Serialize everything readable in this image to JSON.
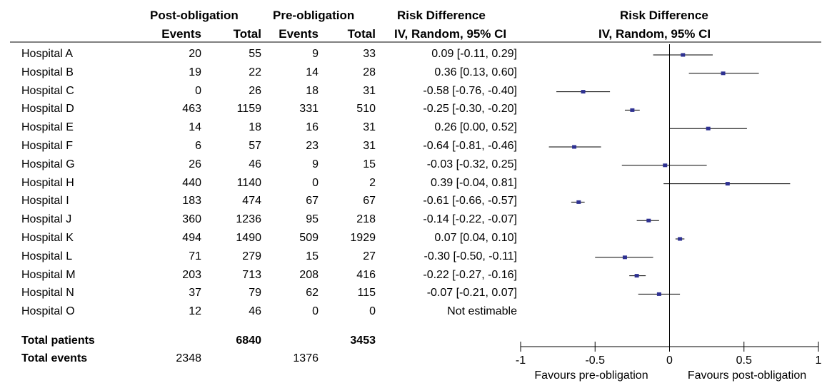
{
  "headers": {
    "post_group": "Post-obligation",
    "pre_group": "Pre-obligation",
    "rd_title": "Risk Difference",
    "rd_method": "IV, Random, 95% CI",
    "events": "Events",
    "total": "Total",
    "plot_title": "Risk Difference",
    "plot_method": "IV, Random, 95% CI"
  },
  "rows": [
    {
      "name": "Hospital A",
      "post_events": "20",
      "post_total": "55",
      "pre_events": "9",
      "pre_total": "33",
      "ci_text": "0.09 [-0.11, 0.29]"
    },
    {
      "name": "Hospital B",
      "post_events": "19",
      "post_total": "22",
      "pre_events": "14",
      "pre_total": "28",
      "ci_text": "0.36 [0.13, 0.60]"
    },
    {
      "name": "Hospital C",
      "post_events": "0",
      "post_total": "26",
      "pre_events": "18",
      "pre_total": "31",
      "ci_text": "-0.58 [-0.76, -0.40]"
    },
    {
      "name": "Hospital D",
      "post_events": "463",
      "post_total": "1159",
      "pre_events": "331",
      "pre_total": "510",
      "ci_text": "-0.25 [-0.30, -0.20]"
    },
    {
      "name": "Hospital E",
      "post_events": "14",
      "post_total": "18",
      "pre_events": "16",
      "pre_total": "31",
      "ci_text": "0.26 [0.00, 0.52]"
    },
    {
      "name": "Hospital F",
      "post_events": "6",
      "post_total": "57",
      "pre_events": "23",
      "pre_total": "31",
      "ci_text": "-0.64 [-0.81, -0.46]"
    },
    {
      "name": "Hospital G",
      "post_events": "26",
      "post_total": "46",
      "pre_events": "9",
      "pre_total": "15",
      "ci_text": "-0.03 [-0.32, 0.25]"
    },
    {
      "name": "Hospital H",
      "post_events": "440",
      "post_total": "1140",
      "pre_events": "0",
      "pre_total": "2",
      "ci_text": "0.39 [-0.04, 0.81]"
    },
    {
      "name": "Hospital I",
      "post_events": "183",
      "post_total": "474",
      "pre_events": "67",
      "pre_total": "67",
      "ci_text": "-0.61 [-0.66, -0.57]"
    },
    {
      "name": "Hospital J",
      "post_events": "360",
      "post_total": "1236",
      "pre_events": "95",
      "pre_total": "218",
      "ci_text": "-0.14 [-0.22, -0.07]"
    },
    {
      "name": "Hospital K",
      "post_events": "494",
      "post_total": "1490",
      "pre_events": "509",
      "pre_total": "1929",
      "ci_text": "0.07 [0.04, 0.10]"
    },
    {
      "name": "Hospital L",
      "post_events": "71",
      "post_total": "279",
      "pre_events": "15",
      "pre_total": "27",
      "ci_text": "-0.30 [-0.50, -0.11]"
    },
    {
      "name": "Hospital M",
      "post_events": "203",
      "post_total": "713",
      "pre_events": "208",
      "pre_total": "416",
      "ci_text": "-0.22 [-0.27, -0.16]"
    },
    {
      "name": "Hospital N",
      "post_events": "37",
      "post_total": "79",
      "pre_events": "62",
      "pre_total": "115",
      "ci_text": "-0.07 [-0.21, 0.07]"
    },
    {
      "name": "Hospital O",
      "post_events": "12",
      "post_total": "46",
      "pre_events": "0",
      "pre_total": "0",
      "ci_text": "Not estimable"
    }
  ],
  "totals": {
    "patients_label": "Total patients",
    "events_label": "Total events",
    "post_total_patients": "6840",
    "pre_total_patients": "3453",
    "post_total_events": "2348",
    "pre_total_events": "1376"
  },
  "axis": {
    "left_label": "Favours pre-obligation",
    "right_label": "Favours post-obligation"
  },
  "colors": {
    "marker": "#2e3192",
    "line": "#000000"
  },
  "chart_data": {
    "type": "forest",
    "title": "Risk Difference",
    "subtitle": "IV, Random, 95% CI",
    "xlim": [
      -1,
      1
    ],
    "ticks": [
      -1,
      -0.5,
      0,
      0.5,
      1
    ],
    "tick_labels": [
      "-1",
      "-0.5",
      "0",
      "0.5",
      "1"
    ],
    "xlabel_left": "Favours pre-obligation",
    "xlabel_right": "Favours post-obligation",
    "studies": [
      {
        "name": "Hospital A",
        "est": 0.09,
        "lo": -0.11,
        "hi": 0.29
      },
      {
        "name": "Hospital B",
        "est": 0.36,
        "lo": 0.13,
        "hi": 0.6
      },
      {
        "name": "Hospital C",
        "est": -0.58,
        "lo": -0.76,
        "hi": -0.4
      },
      {
        "name": "Hospital D",
        "est": -0.25,
        "lo": -0.3,
        "hi": -0.2
      },
      {
        "name": "Hospital E",
        "est": 0.26,
        "lo": 0.0,
        "hi": 0.52
      },
      {
        "name": "Hospital F",
        "est": -0.64,
        "lo": -0.81,
        "hi": -0.46
      },
      {
        "name": "Hospital G",
        "est": -0.03,
        "lo": -0.32,
        "hi": 0.25
      },
      {
        "name": "Hospital H",
        "est": 0.39,
        "lo": -0.04,
        "hi": 0.81
      },
      {
        "name": "Hospital I",
        "est": -0.61,
        "lo": -0.66,
        "hi": -0.57
      },
      {
        "name": "Hospital J",
        "est": -0.14,
        "lo": -0.22,
        "hi": -0.07
      },
      {
        "name": "Hospital K",
        "est": 0.07,
        "lo": 0.04,
        "hi": 0.1
      },
      {
        "name": "Hospital L",
        "est": -0.3,
        "lo": -0.5,
        "hi": -0.11
      },
      {
        "name": "Hospital M",
        "est": -0.22,
        "lo": -0.27,
        "hi": -0.16
      },
      {
        "name": "Hospital N",
        "est": -0.07,
        "lo": -0.21,
        "hi": 0.07
      },
      {
        "name": "Hospital O",
        "est": null,
        "lo": null,
        "hi": null
      }
    ]
  }
}
